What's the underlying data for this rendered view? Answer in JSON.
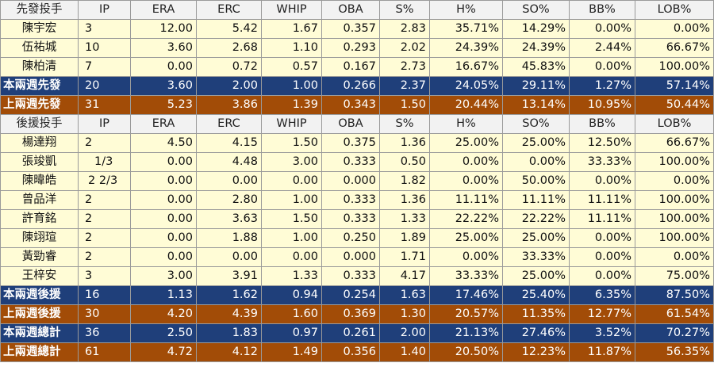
{
  "columns": [
    "IP",
    "ERA",
    "ERC",
    "WHIP",
    "OBA",
    "S%",
    "H%",
    "SO%",
    "BB%",
    "LOB%"
  ],
  "starters": {
    "header": "先發投手",
    "players": [
      {
        "name": "陳宇宏",
        "ip": "3",
        "era": "12.00",
        "erc": "5.42",
        "whip": "1.67",
        "oba": "0.357",
        "s": "2.83",
        "h": "35.71%",
        "so": "14.29%",
        "bb": "0.00%",
        "lob": "0.00%"
      },
      {
        "name": "伍祐城",
        "ip": "10",
        "era": "3.60",
        "erc": "2.68",
        "whip": "1.10",
        "oba": "0.293",
        "s": "2.02",
        "h": "24.39%",
        "so": "24.39%",
        "bb": "2.44%",
        "lob": "66.67%"
      },
      {
        "name": "陳柏清",
        "ip": "7",
        "era": "0.00",
        "erc": "0.72",
        "whip": "0.57",
        "oba": "0.167",
        "s": "2.73",
        "h": "16.67%",
        "so": "45.83%",
        "bb": "0.00%",
        "lob": "100.00%"
      }
    ],
    "this_two_weeks": {
      "name": "本兩週先發",
      "ip": "20",
      "era": "3.60",
      "erc": "2.00",
      "whip": "1.00",
      "oba": "0.266",
      "s": "2.37",
      "h": "24.05%",
      "so": "29.11%",
      "bb": "1.27%",
      "lob": "57.14%"
    },
    "last_two_weeks": {
      "name": "上兩週先發",
      "ip": "31",
      "era": "5.23",
      "erc": "3.86",
      "whip": "1.39",
      "oba": "0.343",
      "s": "1.50",
      "h": "20.44%",
      "so": "13.14%",
      "bb": "10.95%",
      "lob": "50.44%"
    }
  },
  "relievers": {
    "header": "後援投手",
    "players": [
      {
        "name": "楊達翔",
        "ip": "2",
        "era": "4.50",
        "erc": "4.15",
        "whip": "1.50",
        "oba": "0.375",
        "s": "1.36",
        "h": "25.00%",
        "so": "25.00%",
        "bb": "12.50%",
        "lob": "66.67%"
      },
      {
        "name": "張竣凱",
        "ip": "1/3",
        "era": "0.00",
        "erc": "4.48",
        "whip": "3.00",
        "oba": "0.333",
        "s": "0.50",
        "h": "0.00%",
        "so": "0.00%",
        "bb": "33.33%",
        "lob": "100.00%"
      },
      {
        "name": "陳暐皓",
        "ip": "2 2/3",
        "era": "0.00",
        "erc": "0.00",
        "whip": "0.00",
        "oba": "0.000",
        "s": "1.82",
        "h": "0.00%",
        "so": "50.00%",
        "bb": "0.00%",
        "lob": "0.00%"
      },
      {
        "name": "曾品洋",
        "ip": "2",
        "era": "0.00",
        "erc": "2.80",
        "whip": "1.00",
        "oba": "0.333",
        "s": "1.36",
        "h": "11.11%",
        "so": "11.11%",
        "bb": "11.11%",
        "lob": "100.00%"
      },
      {
        "name": "許育銘",
        "ip": "2",
        "era": "0.00",
        "erc": "3.63",
        "whip": "1.50",
        "oba": "0.333",
        "s": "1.33",
        "h": "22.22%",
        "so": "22.22%",
        "bb": "11.11%",
        "lob": "100.00%"
      },
      {
        "name": "陳翊瑄",
        "ip": "2",
        "era": "0.00",
        "erc": "1.88",
        "whip": "1.00",
        "oba": "0.250",
        "s": "1.89",
        "h": "25.00%",
        "so": "25.00%",
        "bb": "0.00%",
        "lob": "100.00%"
      },
      {
        "name": "黃勁睿",
        "ip": "2",
        "era": "0.00",
        "erc": "0.00",
        "whip": "0.00",
        "oba": "0.000",
        "s": "1.71",
        "h": "0.00%",
        "so": "33.33%",
        "bb": "0.00%",
        "lob": "0.00%"
      },
      {
        "name": "王梓安",
        "ip": "3",
        "era": "3.00",
        "erc": "3.91",
        "whip": "1.33",
        "oba": "0.333",
        "s": "4.17",
        "h": "33.33%",
        "so": "25.00%",
        "bb": "0.00%",
        "lob": "75.00%"
      }
    ],
    "this_two_weeks": {
      "name": "本兩週後援",
      "ip": "16",
      "era": "1.13",
      "erc": "1.62",
      "whip": "0.94",
      "oba": "0.254",
      "s": "1.63",
      "h": "17.46%",
      "so": "25.40%",
      "bb": "6.35%",
      "lob": "87.50%"
    },
    "last_two_weeks": {
      "name": "上兩週後援",
      "ip": "30",
      "era": "4.20",
      "erc": "4.39",
      "whip": "1.60",
      "oba": "0.369",
      "s": "1.30",
      "h": "20.57%",
      "so": "11.35%",
      "bb": "12.77%",
      "lob": "61.54%"
    }
  },
  "totals": {
    "this_two_weeks": {
      "name": "本兩週總計",
      "ip": "36",
      "era": "2.50",
      "erc": "1.83",
      "whip": "0.97",
      "oba": "0.261",
      "s": "2.00",
      "h": "21.13%",
      "so": "27.46%",
      "bb": "3.52%",
      "lob": "70.27%"
    },
    "last_two_weeks": {
      "name": "上兩週總計",
      "ip": "61",
      "era": "4.72",
      "erc": "4.12",
      "whip": "1.49",
      "oba": "0.356",
      "s": "1.40",
      "h": "20.50%",
      "so": "12.23%",
      "bb": "11.87%",
      "lob": "56.35%"
    }
  },
  "colors": {
    "player_bg": "#fffcd6",
    "header_bg": "#f2f2f2",
    "blue_summary": "#1f3f7a",
    "orange_summary": "#a24c07"
  }
}
